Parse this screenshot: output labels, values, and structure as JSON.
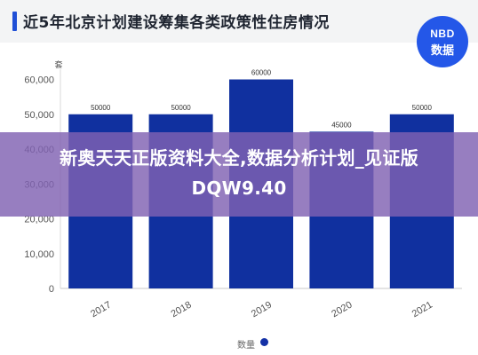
{
  "header": {
    "title": "近5年北京计划建设筹集各类政策性住房情况"
  },
  "logo": {
    "line1": "NBD",
    "line2": "数据"
  },
  "banner": {
    "text": "新奥天天正版资料大全,数据分析计划_见证版DQW9.40"
  },
  "colors": {
    "bar": "#10309f",
    "accent": "#1f4fd6",
    "banner": "#8062b2"
  },
  "chart_data": {
    "type": "bar",
    "ylabel": "套",
    "categories": [
      "2017",
      "2018",
      "2019",
      "2020",
      "2021"
    ],
    "series": [
      {
        "name": "数量",
        "values": [
          50000,
          50000,
          60000,
          45000,
          50000
        ]
      }
    ],
    "data_labels": [
      "50000",
      "50000",
      "60000",
      "45000",
      "50000"
    ],
    "yticks": [
      0,
      10000,
      20000,
      30000,
      40000,
      50000,
      60000
    ],
    "ytick_labels": [
      "0",
      "10,000",
      "20,000",
      "30,000",
      "40,000",
      "50,000",
      "60,000"
    ],
    "ylim": [
      0,
      65000
    ],
    "grid": false,
    "legend_position": "bottom"
  }
}
